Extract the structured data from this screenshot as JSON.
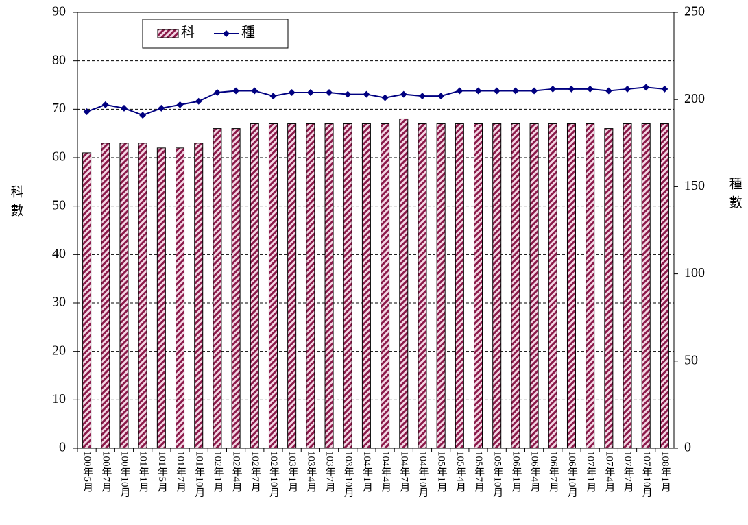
{
  "chart_data": {
    "type": "bar_line",
    "categories": [
      "100年5月",
      "100年7月",
      "100年10月",
      "101年1月",
      "101年5月",
      "101年7月",
      "101年10月",
      "102年1月",
      "102年4月",
      "102年7月",
      "102年10月",
      "103年1月",
      "103年4月",
      "103年7月",
      "103年10月",
      "104年1月",
      "104年4月",
      "104年7月",
      "104年10月",
      "105年1月",
      "105年4月",
      "105年7月",
      "105年10月",
      "106年1月",
      "106年4月",
      "106年7月",
      "106年10月",
      "107年1月",
      "107年4月",
      "107年7月",
      "107年10月",
      "108年1月"
    ],
    "series": [
      {
        "name": "科",
        "type": "bar",
        "color": "#8b1a4a",
        "values": [
          61,
          63,
          63,
          63,
          62,
          62,
          63,
          66,
          66,
          67,
          67,
          67,
          67,
          67,
          67,
          67,
          67,
          68,
          67,
          67,
          67,
          67,
          67,
          67,
          67,
          67,
          67,
          67,
          66,
          67,
          67,
          67
        ]
      },
      {
        "name": "種",
        "type": "line",
        "axis": "y2",
        "color": "#000080",
        "values": [
          193,
          197,
          195,
          191,
          195,
          197,
          199,
          204,
          205,
          205,
          202,
          204,
          204,
          204,
          203,
          203,
          201,
          203,
          202,
          202,
          205,
          205,
          205,
          205,
          205,
          206,
          206,
          206,
          205,
          206,
          207,
          206
        ]
      }
    ],
    "ylabel": "科數",
    "y2label": "種數",
    "ylim": [
      0,
      90
    ],
    "yticks": [
      0,
      10,
      20,
      30,
      40,
      50,
      60,
      70,
      80,
      90
    ],
    "y2lim": [
      0,
      250
    ],
    "y2ticks": [
      0,
      50,
      100,
      150,
      200,
      250
    ],
    "grid": true,
    "legend": "upper-left"
  }
}
